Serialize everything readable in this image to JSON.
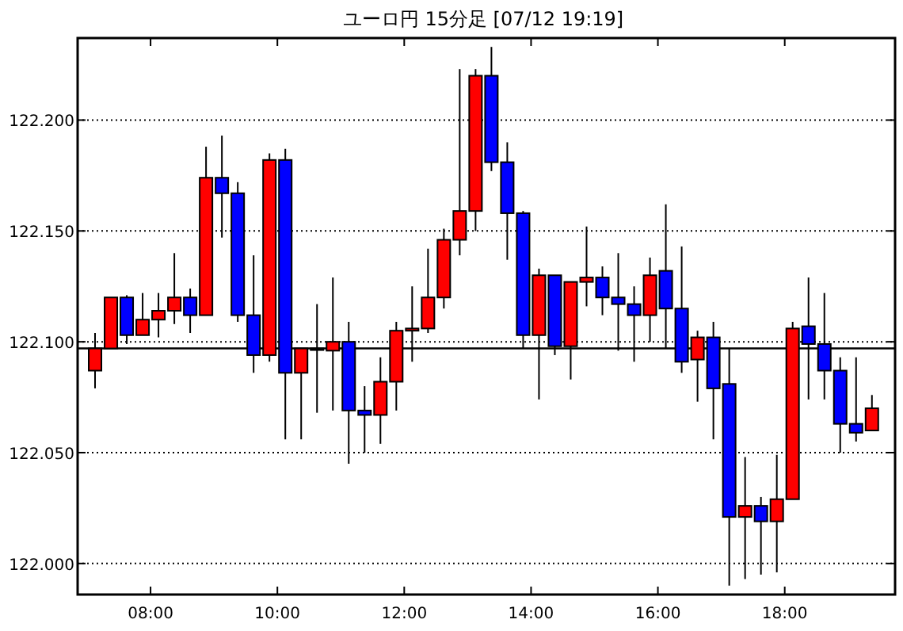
{
  "chart_data": {
    "type": "candlestick",
    "title": "ユーロ円 15分足 [07/12 19:19]",
    "x": [
      7.125,
      7.375,
      7.625,
      7.875,
      8.125,
      8.375,
      8.625,
      8.875,
      9.125,
      9.375,
      9.625,
      9.875,
      10.125,
      10.375,
      10.625,
      10.875,
      11.125,
      11.375,
      11.625,
      11.875,
      12.125,
      12.375,
      12.625,
      12.875,
      13.125,
      13.375,
      13.625,
      13.875,
      14.125,
      14.375,
      14.625,
      14.875,
      15.125,
      15.375,
      15.625,
      15.875,
      16.125,
      16.375,
      16.625,
      16.875,
      17.125,
      17.375,
      17.625,
      17.875,
      18.125,
      18.375,
      18.625,
      18.875,
      19.125,
      19.375
    ],
    "ohlc": [
      [
        122.087,
        122.104,
        122.079,
        122.097
      ],
      [
        122.097,
        122.12,
        122.097,
        122.12
      ],
      [
        122.12,
        122.121,
        122.099,
        122.103
      ],
      [
        122.103,
        122.122,
        122.103,
        122.11
      ],
      [
        122.11,
        122.122,
        122.102,
        122.114
      ],
      [
        122.114,
        122.14,
        122.108,
        122.12
      ],
      [
        122.12,
        122.124,
        122.104,
        122.112
      ],
      [
        122.112,
        122.188,
        122.112,
        122.174
      ],
      [
        122.174,
        122.193,
        122.147,
        122.167
      ],
      [
        122.167,
        122.172,
        122.109,
        122.112
      ],
      [
        122.112,
        122.139,
        122.086,
        122.094
      ],
      [
        122.094,
        122.185,
        122.091,
        122.182
      ],
      [
        122.182,
        122.187,
        122.056,
        122.086
      ],
      [
        122.086,
        122.097,
        122.056,
        122.097
      ],
      [
        122.097,
        122.117,
        122.068,
        122.097
      ],
      [
        122.096,
        122.129,
        122.069,
        122.1
      ],
      [
        122.1,
        122.109,
        122.045,
        122.069
      ],
      [
        122.069,
        122.08,
        122.05,
        122.067
      ],
      [
        122.067,
        122.093,
        122.054,
        122.082
      ],
      [
        122.082,
        122.109,
        122.069,
        122.105
      ],
      [
        122.105,
        122.125,
        122.091,
        122.106
      ],
      [
        122.106,
        122.142,
        122.104,
        122.12
      ],
      [
        122.12,
        122.151,
        122.115,
        122.146
      ],
      [
        122.146,
        122.223,
        122.139,
        122.159
      ],
      [
        122.159,
        122.223,
        122.15,
        122.22
      ],
      [
        122.22,
        122.233,
        122.177,
        122.181
      ],
      [
        122.181,
        122.19,
        122.137,
        122.158
      ],
      [
        122.158,
        122.159,
        122.097,
        122.103
      ],
      [
        122.103,
        122.133,
        122.074,
        122.13
      ],
      [
        122.13,
        122.13,
        122.094,
        122.098
      ],
      [
        122.098,
        122.127,
        122.083,
        122.127
      ],
      [
        122.127,
        122.152,
        122.116,
        122.129
      ],
      [
        122.129,
        122.134,
        122.112,
        122.12
      ],
      [
        122.12,
        122.14,
        122.096,
        122.117
      ],
      [
        122.117,
        122.125,
        122.091,
        122.112
      ],
      [
        122.112,
        122.138,
        122.1,
        122.13
      ],
      [
        122.132,
        122.162,
        122.097,
        122.115
      ],
      [
        122.115,
        122.143,
        122.086,
        122.091
      ],
      [
        122.092,
        122.105,
        122.073,
        122.102
      ],
      [
        122.102,
        122.109,
        122.056,
        122.079
      ],
      [
        122.081,
        122.097,
        121.99,
        122.021
      ],
      [
        122.021,
        122.048,
        121.993,
        122.026
      ],
      [
        122.026,
        122.03,
        121.995,
        122.019
      ],
      [
        122.019,
        122.049,
        121.996,
        122.029
      ],
      [
        122.029,
        122.109,
        122.029,
        122.106
      ],
      [
        122.107,
        122.129,
        122.074,
        122.099
      ],
      [
        122.099,
        122.122,
        122.074,
        122.087
      ],
      [
        122.087,
        122.093,
        122.05,
        122.063
      ],
      [
        122.063,
        122.093,
        122.055,
        122.059
      ],
      [
        122.06,
        122.076,
        122.06,
        122.07
      ]
    ],
    "colors": [
      "#ff0000",
      "#ff0000",
      "#0000ff",
      "#ff0000",
      "#ff0000",
      "#ff0000",
      "#0000ff",
      "#ff0000",
      "#0000ff",
      "#0000ff",
      "#0000ff",
      "#ff0000",
      "#0000ff",
      "#ff0000",
      "#000000",
      "#ff0000",
      "#0000ff",
      "#0000ff",
      "#ff0000",
      "#ff0000",
      "#ff0000",
      "#ff0000",
      "#ff0000",
      "#ff0000",
      "#ff0000",
      "#0000ff",
      "#0000ff",
      "#0000ff",
      "#ff0000",
      "#0000ff",
      "#ff0000",
      "#ff0000",
      "#0000ff",
      "#0000ff",
      "#0000ff",
      "#ff0000",
      "#0000ff",
      "#0000ff",
      "#ff0000",
      "#0000ff",
      "#0000ff",
      "#ff0000",
      "#0000ff",
      "#ff0000",
      "#ff0000",
      "#0000ff",
      "#0000ff",
      "#0000ff",
      "#0000ff",
      "#ff0000"
    ],
    "xlim": [
      6.85,
      19.74
    ],
    "xticks": [
      {
        "value": 8,
        "label": "08:00"
      },
      {
        "value": 10,
        "label": "10:00"
      },
      {
        "value": 12,
        "label": "12:00"
      },
      {
        "value": 14,
        "label": "14:00"
      },
      {
        "value": 16,
        "label": "16:00"
      },
      {
        "value": 18,
        "label": "18:00"
      }
    ],
    "ylim": [
      121.986,
      122.237
    ],
    "yticks": [
      {
        "value": 122,
        "label": "122.000"
      },
      {
        "value": 122.05,
        "label": "122.050"
      },
      {
        "value": 122.1,
        "label": "122.100"
      },
      {
        "value": 122.15,
        "label": "122.150"
      },
      {
        "value": 122.2,
        "label": "122.200"
      }
    ],
    "grid": "y",
    "ref_lines": [
      {
        "axis": "y",
        "value": 122.097,
        "color": "#000000"
      }
    ]
  }
}
